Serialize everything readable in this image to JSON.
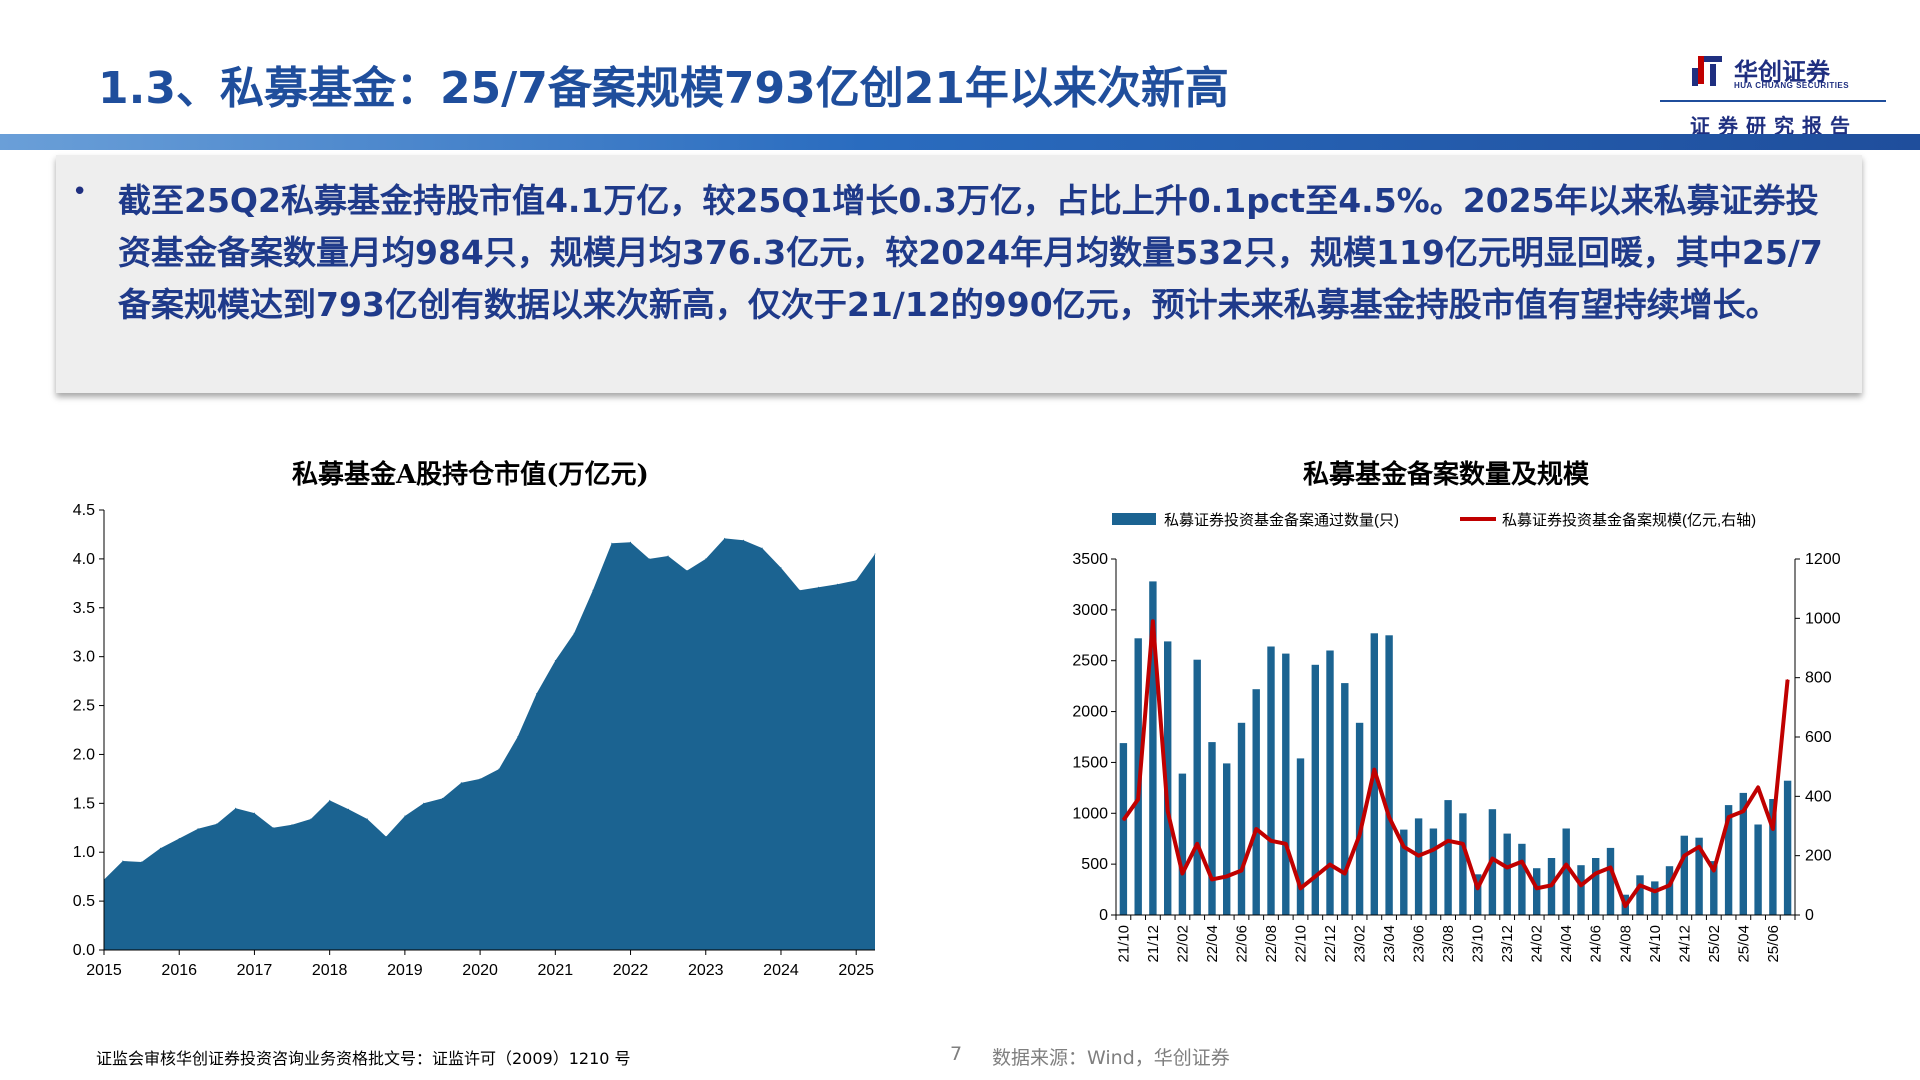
{
  "header": {
    "title": "1.3、私募基金：25/7备案规模793亿创21年以来次新高",
    "logo_cn": "华创证券",
    "logo_en": "HUA CHUANG SECURITIES",
    "tagline": "证券研究报告"
  },
  "summary": {
    "bullet": "•",
    "text": "截至25Q2私募基金持股市值4.1万亿，较25Q1增长0.3万亿，占比上升0.1pct至4.5%。2025年以来私募证券投资基金备案数量月均984只，规模月均376.3亿元，较2024年月均数量532只，规模119亿元明显回暖，其中25/7备案规模达到793亿创有数据以来次新高，仅次于21/12的990亿元，预计未来私募基金持股市值有望持续增长。"
  },
  "chart_data": [
    {
      "type": "area",
      "title": "私募基金A股持仓市值(万亿元)",
      "color": "#1b6391",
      "x": [
        2015.0,
        2015.25,
        2015.5,
        2015.75,
        2016.0,
        2016.25,
        2016.5,
        2016.75,
        2017.0,
        2017.25,
        2017.5,
        2017.75,
        2018.0,
        2018.25,
        2018.5,
        2018.75,
        2019.0,
        2019.25,
        2019.5,
        2019.75,
        2020.0,
        2020.25,
        2020.5,
        2020.75,
        2021.0,
        2021.25,
        2021.5,
        2021.75,
        2022.0,
        2022.25,
        2022.5,
        2022.75,
        2023.0,
        2023.25,
        2023.5,
        2023.75,
        2024.0,
        2024.25,
        2024.5,
        2024.75,
        2025.0,
        2025.25
      ],
      "values": [
        0.72,
        0.91,
        0.9,
        1.04,
        1.14,
        1.24,
        1.29,
        1.45,
        1.4,
        1.25,
        1.28,
        1.34,
        1.53,
        1.44,
        1.34,
        1.16,
        1.37,
        1.5,
        1.55,
        1.71,
        1.75,
        1.85,
        2.18,
        2.62,
        2.96,
        3.24,
        3.68,
        4.16,
        4.17,
        4.0,
        4.03,
        3.88,
        4.0,
        4.21,
        4.19,
        4.11,
        3.91,
        3.68,
        3.71,
        3.74,
        3.78,
        4.05
      ],
      "xticks": [
        "2015",
        "2016",
        "2017",
        "2018",
        "2019",
        "2020",
        "2021",
        "2022",
        "2023",
        "2024",
        "2025"
      ],
      "yticks": [
        "0.0",
        "0.5",
        "1.0",
        "1.5",
        "2.0",
        "2.5",
        "3.0",
        "3.5",
        "4.0",
        "4.5"
      ],
      "ylim": [
        0,
        4.5
      ],
      "xlim": [
        2015.0,
        2025.25
      ]
    },
    {
      "type": "bar+line",
      "title": "私募基金备案数量及规模",
      "legend": [
        "私募证券投资基金备案通过数量(只)",
        "私募证券投资基金备案规模(亿元,右轴)"
      ],
      "bar_color": "#1b6391",
      "line_color": "#c00000",
      "categories": [
        "21/10",
        "21/11",
        "21/12",
        "22/01",
        "22/02",
        "22/03",
        "22/04",
        "22/05",
        "22/06",
        "22/07",
        "22/08",
        "22/09",
        "22/10",
        "22/11",
        "22/12",
        "23/01",
        "23/02",
        "23/03",
        "23/04",
        "23/05",
        "23/06",
        "23/07",
        "23/08",
        "23/09",
        "23/10",
        "23/11",
        "23/12",
        "24/01",
        "24/02",
        "24/03",
        "24/04",
        "24/05",
        "24/06",
        "24/07",
        "24/08",
        "24/09",
        "24/10",
        "24/11",
        "24/12",
        "25/01",
        "25/02",
        "25/03",
        "25/04",
        "25/05",
        "25/06",
        "25/07"
      ],
      "xtick_labels": [
        "21/10",
        "21/12",
        "22/02",
        "22/04",
        "22/06",
        "22/08",
        "22/10",
        "22/12",
        "23/02",
        "23/04",
        "23/06",
        "23/08",
        "23/10",
        "23/12",
        "24/02",
        "24/04",
        "24/06",
        "24/08",
        "24/10",
        "24/12",
        "25/02",
        "25/04",
        "25/06"
      ],
      "bar_values": [
        1690,
        2720,
        3280,
        2690,
        1390,
        2510,
        1700,
        1490,
        1890,
        2220,
        2640,
        2570,
        1540,
        2460,
        2600,
        2280,
        1890,
        2770,
        2750,
        840,
        950,
        850,
        1130,
        1000,
        400,
        1040,
        800,
        700,
        460,
        560,
        850,
        490,
        560,
        660,
        200,
        390,
        330,
        480,
        780,
        760,
        530,
        1080,
        1200,
        890,
        1140,
        1320
      ],
      "line_values": [
        320,
        390,
        990,
        350,
        140,
        240,
        120,
        130,
        150,
        290,
        250,
        240,
        90,
        130,
        170,
        140,
        270,
        490,
        330,
        230,
        200,
        220,
        250,
        240,
        90,
        190,
        160,
        180,
        90,
        100,
        170,
        100,
        140,
        160,
        30,
        100,
        80,
        100,
        200,
        230,
        150,
        330,
        350,
        430,
        290,
        793
      ],
      "y_left_ticks": [
        "0",
        "500",
        "1000",
        "1500",
        "2000",
        "2500",
        "3000",
        "3500"
      ],
      "y_right_ticks": [
        "0",
        "200",
        "400",
        "600",
        "800",
        "1000",
        "1200"
      ],
      "ylim_left": [
        0,
        3500
      ],
      "ylim_right": [
        0,
        1200
      ]
    }
  ],
  "footer": {
    "license": "证监会审核华创证券投资咨询业务资格批文号：证监许可（2009）1210 号",
    "page": "7",
    "source": "数据来源：Wind，华创证券"
  }
}
